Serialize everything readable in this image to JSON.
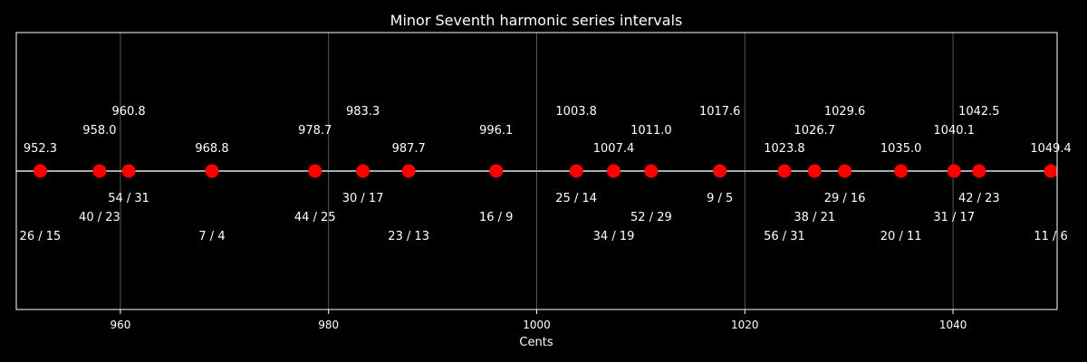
{
  "chart_data": {
    "type": "scatter",
    "title": "Minor Seventh harmonic series intervals",
    "xlabel": "Cents",
    "ylabel": "",
    "xlim": [
      950,
      1050
    ],
    "xticks": [
      960,
      980,
      1000,
      1020,
      1040
    ],
    "grid": "vertical",
    "colors": {
      "background": "#000000",
      "axes": "#ffffff",
      "grid": "#555555",
      "line": "#aaaaaa",
      "marker": "#ff0000",
      "text": "#ffffff"
    },
    "points": [
      {
        "cents": 952.3,
        "cents_label": "952.3",
        "ratio": "26 / 15"
      },
      {
        "cents": 958.0,
        "cents_label": "958.0",
        "ratio": "40 / 23"
      },
      {
        "cents": 960.8,
        "cents_label": "960.8",
        "ratio": "54 / 31"
      },
      {
        "cents": 968.8,
        "cents_label": "968.8",
        "ratio": "7 / 4"
      },
      {
        "cents": 978.7,
        "cents_label": "978.7",
        "ratio": "44 / 25"
      },
      {
        "cents": 983.3,
        "cents_label": "983.3",
        "ratio": "30 / 17"
      },
      {
        "cents": 987.7,
        "cents_label": "987.7",
        "ratio": "23 / 13"
      },
      {
        "cents": 996.1,
        "cents_label": "996.1",
        "ratio": "16 / 9"
      },
      {
        "cents": 1003.8,
        "cents_label": "1003.8",
        "ratio": "25 / 14"
      },
      {
        "cents": 1007.4,
        "cents_label": "1007.4",
        "ratio": "34 / 19"
      },
      {
        "cents": 1011.0,
        "cents_label": "1011.0",
        "ratio": "52 / 29"
      },
      {
        "cents": 1017.6,
        "cents_label": "1017.6",
        "ratio": "9 / 5"
      },
      {
        "cents": 1023.8,
        "cents_label": "1023.8",
        "ratio": "56 / 31"
      },
      {
        "cents": 1026.7,
        "cents_label": "1026.7",
        "ratio": "38 / 21"
      },
      {
        "cents": 1029.6,
        "cents_label": "1029.6",
        "ratio": "29 / 16"
      },
      {
        "cents": 1035.0,
        "cents_label": "1035.0",
        "ratio": "20 / 11"
      },
      {
        "cents": 1040.1,
        "cents_label": "1040.1",
        "ratio": "31 / 17"
      },
      {
        "cents": 1042.5,
        "cents_label": "1042.5",
        "ratio": "42 / 23"
      },
      {
        "cents": 1049.4,
        "cents_label": "1049.4",
        "ratio": "11 / 6"
      }
    ]
  }
}
